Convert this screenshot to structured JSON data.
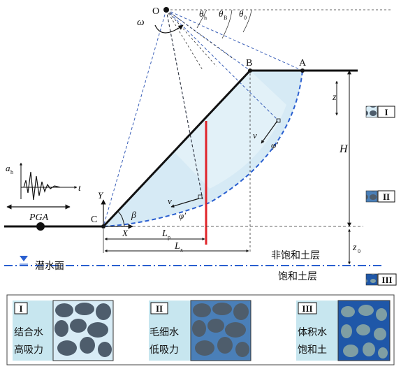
{
  "labels": {
    "point_o": "O",
    "point_a": "A",
    "point_b": "B",
    "point_c": "C",
    "omega": "ω",
    "theta_h": "θ",
    "theta_h_sub": "h",
    "theta_b": "θ",
    "theta_b_sub": "B",
    "theta_0": "θ",
    "theta_0_sub": "0",
    "z": "z",
    "H": "H",
    "z0": "z",
    "z0_sub": "0",
    "Lp": "L",
    "Lp_sub": "p",
    "Lx": "L",
    "Lx_sub": "x",
    "beta": "β",
    "phi_prime_1": "φ′",
    "phi_prime_2": "φ′",
    "v1": "v",
    "v2": "v",
    "axis_y": "Y",
    "axis_x": "X",
    "ah": "a",
    "ah_sub": "h",
    "t": "t",
    "pga": "PGA",
    "water_table": "潜水面",
    "unsaturated_layer": "非饱和土层",
    "saturated_layer": "饱和土层"
  },
  "side_markers": [
    "I",
    "II",
    "III"
  ],
  "legend": [
    {
      "roman": "I",
      "line1": "结合水",
      "line2": "高吸力",
      "water_color": "#d8ecf6",
      "grain_color": "#4e5d6c"
    },
    {
      "roman": "II",
      "line1": "毛细水",
      "line2": "低吸力",
      "water_color": "#4a7fb8",
      "grain_color": "#4e5d6c"
    },
    {
      "roman": "III",
      "line1": "体积水",
      "line2": "饱和土",
      "water_color": "#1f57a8",
      "grain_color": "#7f9ea3"
    }
  ],
  "colors": {
    "slope_line": "#111111",
    "failure_surface": "#2a5fd0",
    "red_bar": "#e0242a",
    "wedge_fill": "#cfe6f3",
    "legend_panel": "#c7e6ef",
    "water_table": "#2a5fd0"
  }
}
